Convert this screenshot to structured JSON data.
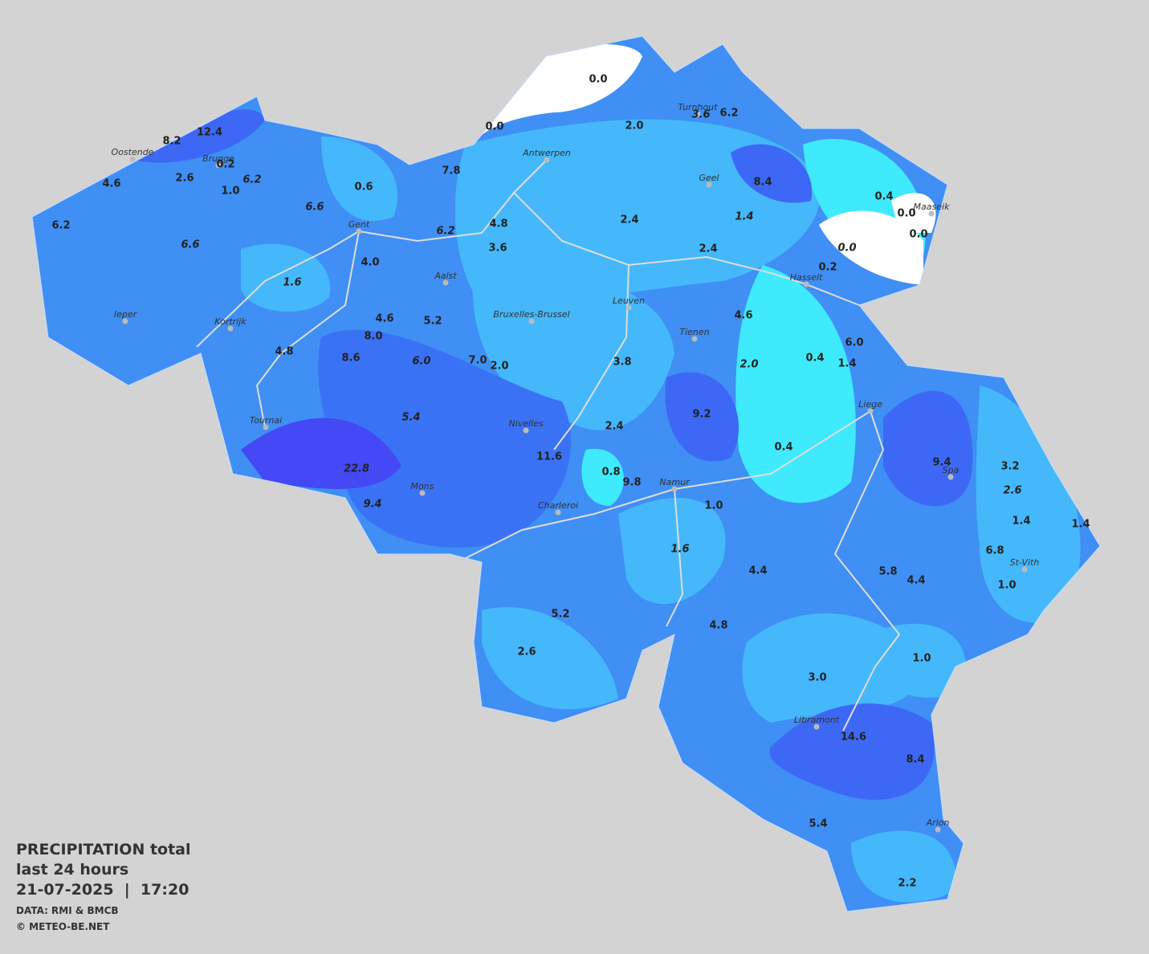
{
  "legend": {
    "title": "PRECIPITATION total",
    "subtitle": "last 24 hours",
    "datetime": "21-07-2025  |  17:20",
    "source": "DATA: RMI & BMCB",
    "copyright": "© METEO-BE.NET"
  },
  "cities": [
    "Oostende",
    "Brugge",
    "Antwerpen",
    "Turnhout",
    "Geel",
    "Maaseik",
    "Gent",
    "Hasselt",
    "Aalst",
    "Leuven",
    "Bruxelles-Brussel",
    "Ieper",
    "Kortrijk",
    "Tienen",
    "Liege",
    "Tournai",
    "Nivelles",
    "Spa",
    "Namur",
    "Mons",
    "Charleroi",
    "St-Vith",
    "Libramont",
    "Arlon"
  ],
  "stations": [
    "0.0",
    "0.0",
    "12.4",
    "8.2",
    "0.2",
    "2.6",
    "6.2",
    "4.6",
    "1.0",
    "6.2",
    "6.6",
    "0.6",
    "7.8",
    "2.0",
    "3.6",
    "6.2",
    "8.4",
    "0.4",
    "0.0",
    "0.0",
    "0.0",
    "0.2",
    "1.4",
    "2.4",
    "2.4",
    "4.8",
    "6.2",
    "3.6",
    "6.6",
    "4.0",
    "1.6",
    "4.6",
    "5.2",
    "8.0",
    "4.8",
    "8.6",
    "6.0",
    "7.0",
    "2.0",
    "3.8",
    "4.6",
    "2.0",
    "0.4",
    "1.4",
    "6.0",
    "9.2",
    "5.4",
    "2.4",
    "11.6",
    "0.8",
    "9.8",
    "0.4",
    "22.8",
    "9.4",
    "1.0",
    "9.4",
    "3.2",
    "2.6",
    "1.4",
    "1.4",
    "6.8",
    "1.6",
    "4.4",
    "5.8",
    "4.4",
    "1.0",
    "5.2",
    "4.8",
    "2.6",
    "1.0",
    "3.0",
    "14.6",
    "8.4",
    "5.4",
    "2.2"
  ]
}
